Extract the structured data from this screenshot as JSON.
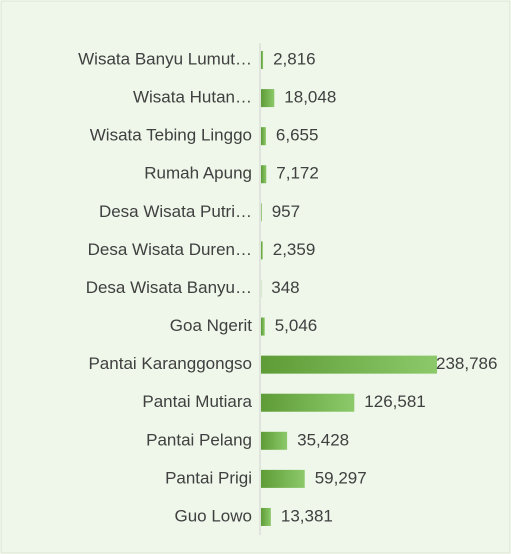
{
  "chart_data": {
    "type": "hbar",
    "categories": [
      "Wisata Banyu Lumut…",
      "Wisata Hutan…",
      "Wisata Tebing Linggo",
      "Rumah Apung",
      "Desa Wisata Putri…",
      "Desa Wisata Duren…",
      "Desa Wisata Banyu…",
      "Goa Ngerit",
      "Pantai Karanggongso",
      "Pantai Mutiara",
      "Pantai Pelang",
      "Pantai Prigi",
      "Guo Lowo"
    ],
    "values": [
      2816,
      18048,
      6655,
      7172,
      957,
      2359,
      348,
      5046,
      238786,
      126581,
      35428,
      59297,
      13381
    ],
    "value_labels": [
      "2,816",
      "18,048",
      "6,655",
      "7,172",
      "957",
      "2,359",
      "348",
      "5,046",
      "238,786",
      "126,581",
      "35,428",
      "59,297",
      "13,381"
    ],
    "color": "#70ad47"
  }
}
